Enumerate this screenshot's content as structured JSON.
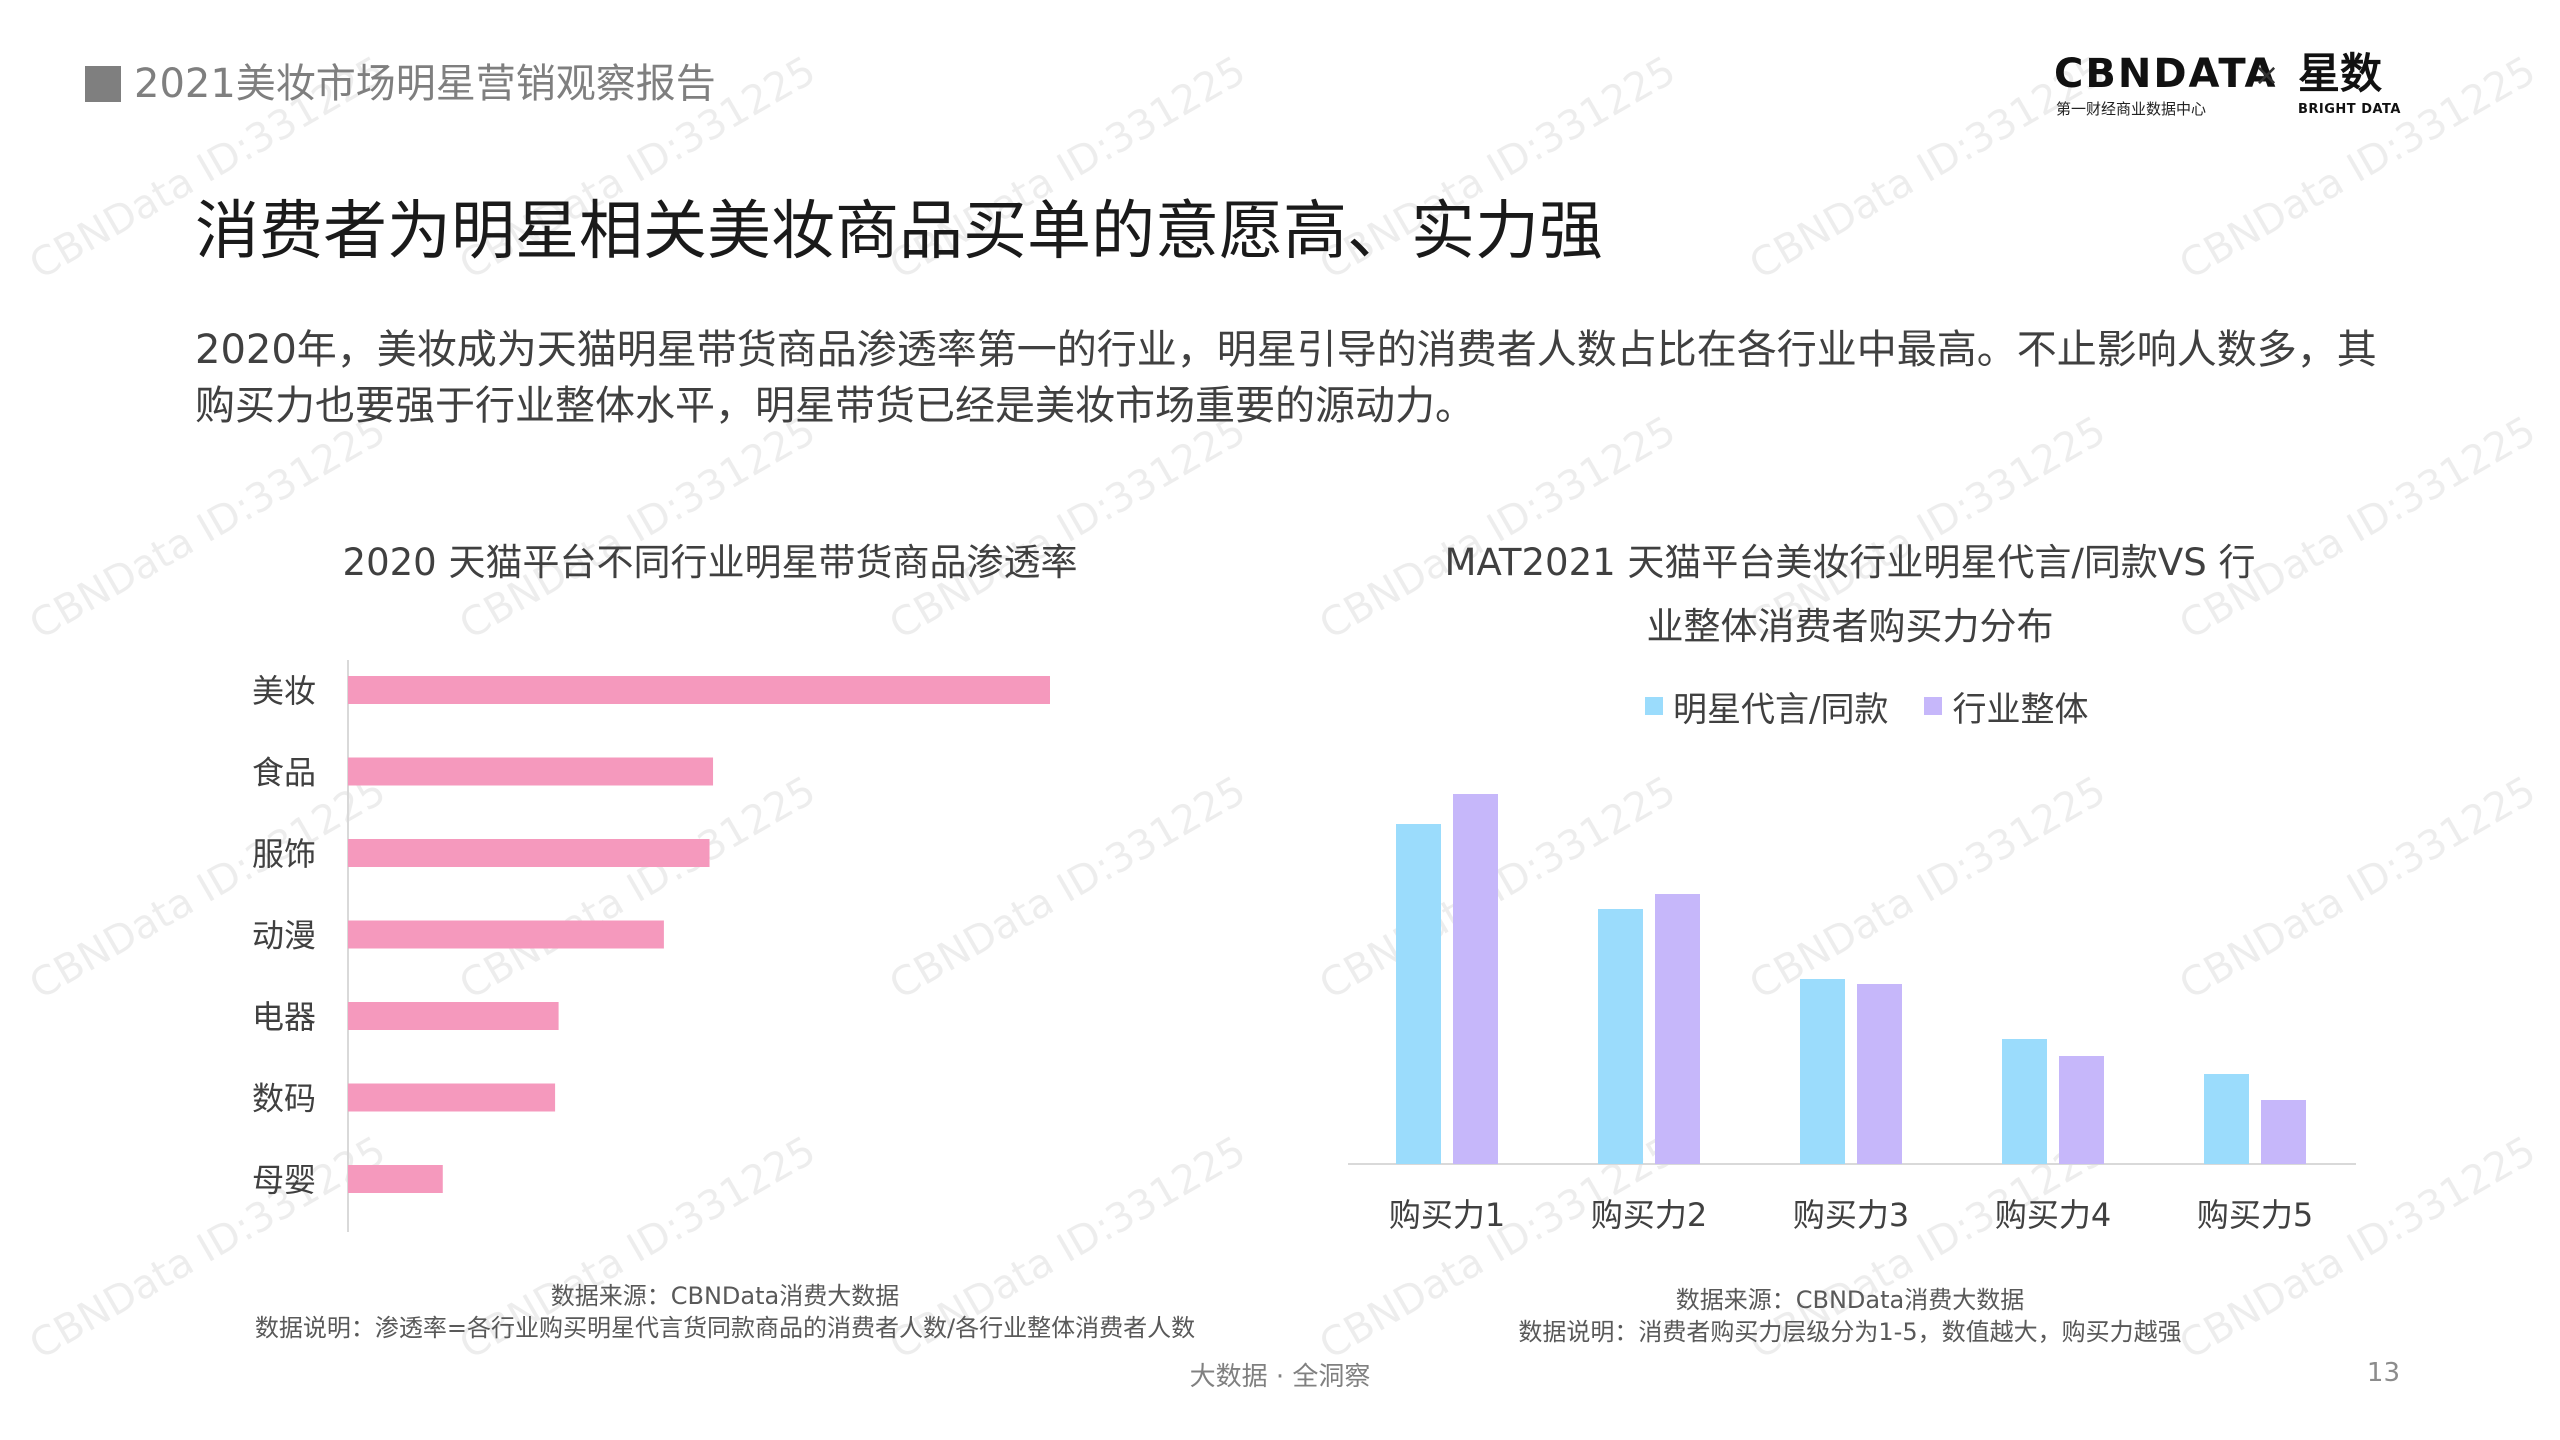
{
  "header": {
    "report_title": "2021美妆市场明星营销观察报告",
    "logo_cbn": "CBNDATA",
    "logo_cbn_sub": "第一财经商业数据中心",
    "logo_x": "×",
    "logo_xingshu": "星数",
    "logo_xingshu_sub": "BRIGHT DATA"
  },
  "headline": "消费者为明星相关美妆商品买单的意愿高、实力强",
  "intro": "2020年，美妆成为天猫明星带货商品渗透率第一的行业，明星引导的消费者人数占比在各行业中最高。不止影响人数多，其购买力也要强于行业整体水平，明星带货已经是美妆市场重要的源动力。",
  "left_chart": {
    "title": "2020 天猫平台不同行业明星带货商品渗透率",
    "source": "数据来源：CBNData消费大数据",
    "note": "数据说明：渗透率=各行业购买明星代言货同款商品的消费者人数/各行业整体消费者人数"
  },
  "right_chart": {
    "title_line1": "MAT2021 天猫平台美妆行业明星代言/同款VS 行",
    "title_line2": "业整体消费者购买力分布",
    "source": "数据来源：CBNData消费大数据",
    "note": "数据说明：消费者购买力层级分为1-5，数值越大，购买力越强"
  },
  "chart_data": [
    {
      "type": "bar",
      "orientation": "horizontal",
      "title": "2020 天猫平台不同行业明星带货商品渗透率",
      "categories": [
        "美妆",
        "食品",
        "服饰",
        "动漫",
        "电器",
        "数码",
        "母婴"
      ],
      "values": [
        100,
        52,
        51.5,
        45,
        30,
        29.5,
        13.5
      ],
      "xlim": [
        0,
        100
      ],
      "value_scale": "relative (unlabeled axis)",
      "grid": false,
      "colors": [
        "#f599bd"
      ]
    },
    {
      "type": "bar",
      "title": "MAT2021 天猫平台美妆行业明星代言/同款VS 行业整体消费者购买力分布",
      "categories": [
        "购买力1",
        "购买力2",
        "购买力3",
        "购买力4",
        "购买力5"
      ],
      "series": [
        {
          "name": "明星代言/同款",
          "values": [
            34,
            25.5,
            18.5,
            12.5,
            9
          ],
          "color": "#9bdcfc"
        },
        {
          "name": "行业整体",
          "values": [
            37,
            27,
            18,
            10.8,
            6.4
          ],
          "color": "#c6b7fa"
        }
      ],
      "ylim": [
        0,
        40
      ],
      "value_scale": "relative (unlabeled axis)",
      "legend": "top",
      "grid": false
    }
  ],
  "watermark": "CBNData ID:331225",
  "footer": {
    "tag": "大数据 · 全洞察",
    "page": "13"
  }
}
